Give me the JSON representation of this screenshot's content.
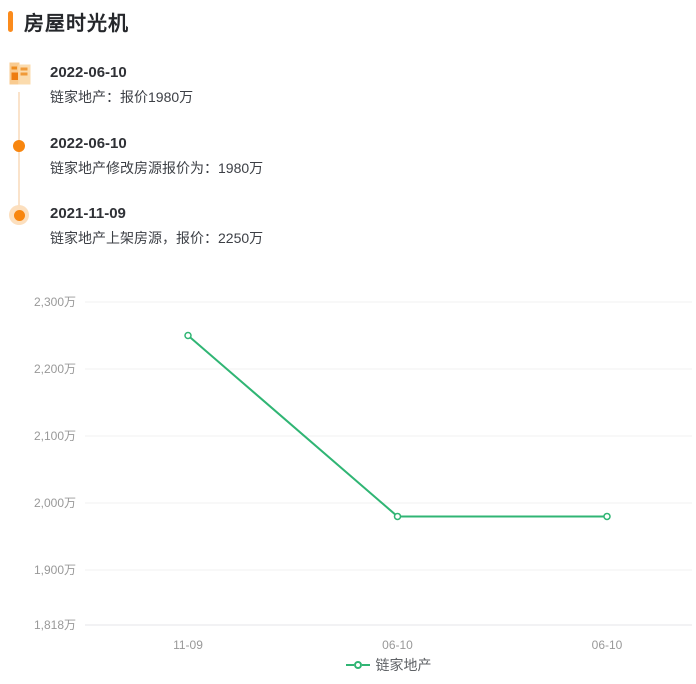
{
  "page": {
    "title": "房屋时光机"
  },
  "theme": {
    "accent_orange": "#fb8b1c",
    "accent_orange_light": "#fcdfbe",
    "line_green": "#30b574",
    "grid_color": "#f0f0f1",
    "axis_line_color": "#e4e6e8",
    "axis_label_color": "#999999"
  },
  "timeline": {
    "items": [
      {
        "marker_icon": "document-list-icon",
        "date": "2022-06-10",
        "desc": "链家地产：报价1980万"
      },
      {
        "marker_icon": "dot-icon",
        "date": "2022-06-10",
        "desc": "链家地产修改房源报价为：1980万"
      },
      {
        "marker_icon": "ringed-dot-icon",
        "date": "2021-11-09",
        "desc": "链家地产上架房源，报价：2250万"
      }
    ]
  },
  "chart_data": {
    "type": "line",
    "title": "",
    "categories": [
      "11-09",
      "06-10",
      "06-10"
    ],
    "series": [
      {
        "name": "链家地产",
        "values": [
          2250,
          1980,
          1980
        ],
        "color": "#30b574",
        "marker": "hollow-circle"
      }
    ],
    "ylim": [
      1818,
      2300
    ],
    "unit": "万",
    "y_ticks": [
      {
        "label": "2,300万",
        "value": 2300
      },
      {
        "label": "2,200万",
        "value": 2200
      },
      {
        "label": "2,100万",
        "value": 2100
      },
      {
        "label": "2,000万",
        "value": 2000
      },
      {
        "label": "1,900万",
        "value": 1900
      },
      {
        "label": "1,818万",
        "value": 1818,
        "is_axis_line": true
      }
    ],
    "grid": true,
    "legend": {
      "position": "bottom-center",
      "entries": [
        "链家地产"
      ]
    }
  }
}
